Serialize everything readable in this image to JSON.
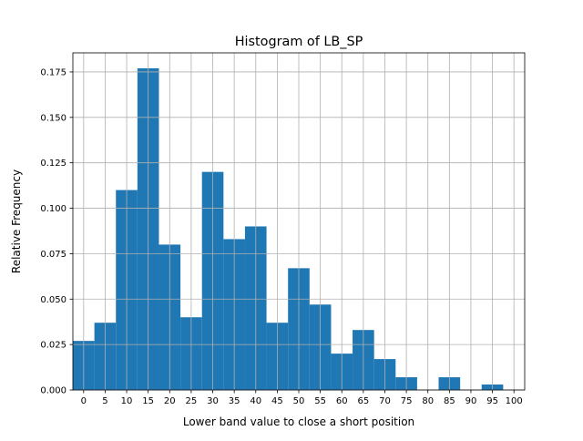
{
  "chart_data": {
    "type": "bar",
    "title": "Histogram of LB_SP",
    "xlabel": "Lower band value to close a short position",
    "ylabel": "Relative Frequency",
    "xlim": [
      -2.5,
      102.5
    ],
    "ylim": [
      0,
      0.1855
    ],
    "grid": true,
    "legend": "none",
    "bar_color": "#1f77b4",
    "x_ticks": [
      0,
      5,
      10,
      15,
      20,
      25,
      30,
      35,
      40,
      45,
      50,
      55,
      60,
      65,
      70,
      75,
      80,
      85,
      90,
      95,
      100
    ],
    "x_tick_labels": [
      "0",
      "5",
      "10",
      "15",
      "20",
      "25",
      "30",
      "35",
      "40",
      "45",
      "50",
      "55",
      "60",
      "65",
      "70",
      "75",
      "80",
      "85",
      "90",
      "95",
      "100"
    ],
    "y_ticks": [
      0.0,
      0.025,
      0.05,
      0.075,
      0.1,
      0.125,
      0.15,
      0.175
    ],
    "y_tick_labels": [
      "0.000",
      "0.025",
      "0.050",
      "0.075",
      "0.100",
      "0.125",
      "0.150",
      "0.175"
    ],
    "bins": [
      {
        "x0": -2.5,
        "x1": 2.5,
        "value": 0.027
      },
      {
        "x0": 2.5,
        "x1": 7.5,
        "value": 0.037
      },
      {
        "x0": 7.5,
        "x1": 12.5,
        "value": 0.11
      },
      {
        "x0": 12.5,
        "x1": 17.5,
        "value": 0.177
      },
      {
        "x0": 17.5,
        "x1": 22.5,
        "value": 0.08
      },
      {
        "x0": 22.5,
        "x1": 27.5,
        "value": 0.04
      },
      {
        "x0": 27.5,
        "x1": 32.5,
        "value": 0.12
      },
      {
        "x0": 32.5,
        "x1": 37.5,
        "value": 0.083
      },
      {
        "x0": 37.5,
        "x1": 42.5,
        "value": 0.09
      },
      {
        "x0": 42.5,
        "x1": 47.5,
        "value": 0.037
      },
      {
        "x0": 47.5,
        "x1": 52.5,
        "value": 0.067
      },
      {
        "x0": 52.5,
        "x1": 57.5,
        "value": 0.047
      },
      {
        "x0": 57.5,
        "x1": 62.5,
        "value": 0.02
      },
      {
        "x0": 62.5,
        "x1": 67.5,
        "value": 0.033
      },
      {
        "x0": 67.5,
        "x1": 72.5,
        "value": 0.017
      },
      {
        "x0": 72.5,
        "x1": 77.5,
        "value": 0.007
      },
      {
        "x0": 77.5,
        "x1": 82.5,
        "value": 0.0
      },
      {
        "x0": 82.5,
        "x1": 87.5,
        "value": 0.007
      },
      {
        "x0": 87.5,
        "x1": 92.5,
        "value": 0.0
      },
      {
        "x0": 92.5,
        "x1": 97.5,
        "value": 0.003
      },
      {
        "x0": 97.5,
        "x1": 102.5,
        "value": 0.0
      }
    ]
  }
}
